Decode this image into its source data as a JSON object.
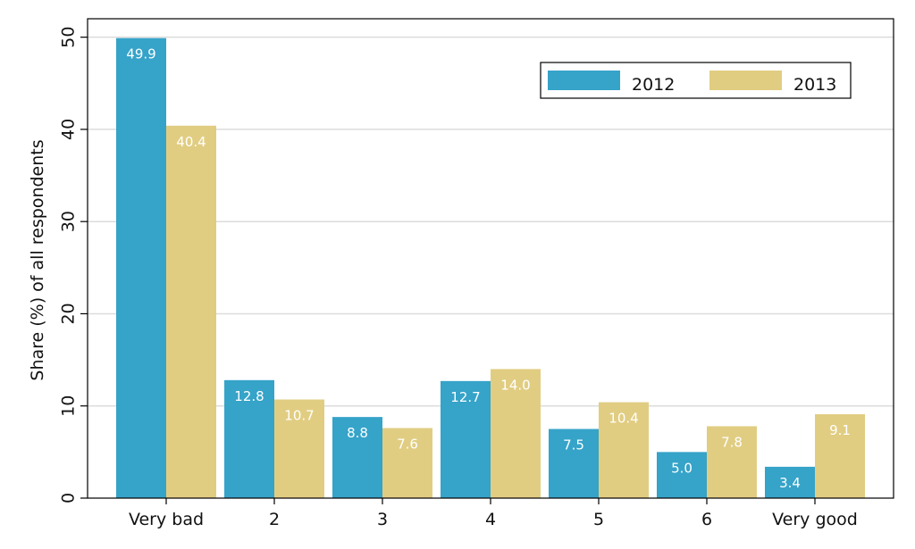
{
  "chart_data": {
    "type": "bar",
    "title": "",
    "xlabel": "",
    "ylabel": "Share (%) of all respondents",
    "categories": [
      "Very bad",
      "2",
      "3",
      "4",
      "5",
      "6",
      "Very good"
    ],
    "series": [
      {
        "name": "2012",
        "color": "#36a3c9",
        "values": [
          49.9,
          12.8,
          8.8,
          12.7,
          7.5,
          5.0,
          3.4
        ]
      },
      {
        "name": "2013",
        "color": "#e1cd82",
        "values": [
          40.4,
          10.7,
          7.6,
          14.0,
          10.4,
          7.8,
          9.1
        ]
      }
    ],
    "ylim": [
      0,
      52
    ],
    "yticks": [
      0,
      10,
      20,
      30,
      40,
      50
    ],
    "grid": true,
    "legend_position": "top-right",
    "data_labels": true
  }
}
